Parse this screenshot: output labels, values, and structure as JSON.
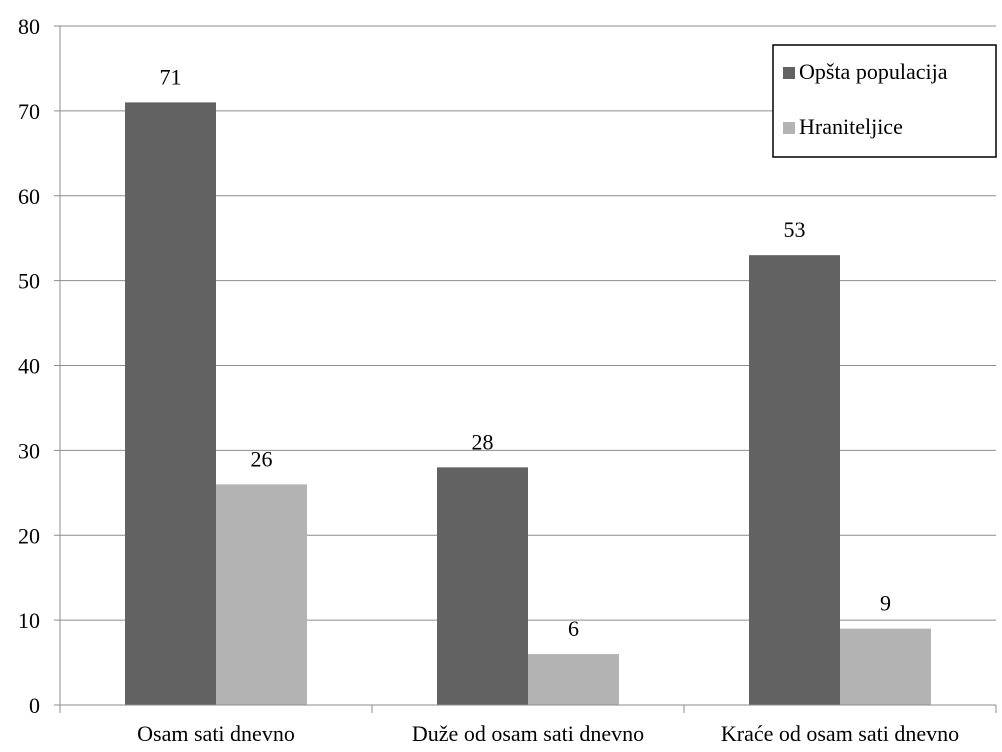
{
  "chart_data": {
    "type": "bar",
    "title": "",
    "xlabel": "",
    "ylabel": "",
    "categories": [
      "Osam sati dnevno",
      "Duže od osam sati dnevno",
      "Kraće od osam sati dnevno"
    ],
    "series": [
      {
        "name": "Opšta populacija",
        "values": [
          71,
          28,
          53
        ],
        "color": "#626262"
      },
      {
        "name": "Hraniteljice",
        "values": [
          26,
          6,
          9
        ],
        "color": "#b3b3b3"
      }
    ],
    "ylim": [
      0,
      80
    ],
    "yticks": [
      0,
      10,
      20,
      30,
      40,
      50,
      60,
      70,
      80
    ],
    "data_labels": true,
    "grid": true,
    "legend": "top-right",
    "colors": {
      "grid": "#8c8c8c",
      "axis": "#8c8c8c",
      "legend_border": "#000000"
    }
  }
}
